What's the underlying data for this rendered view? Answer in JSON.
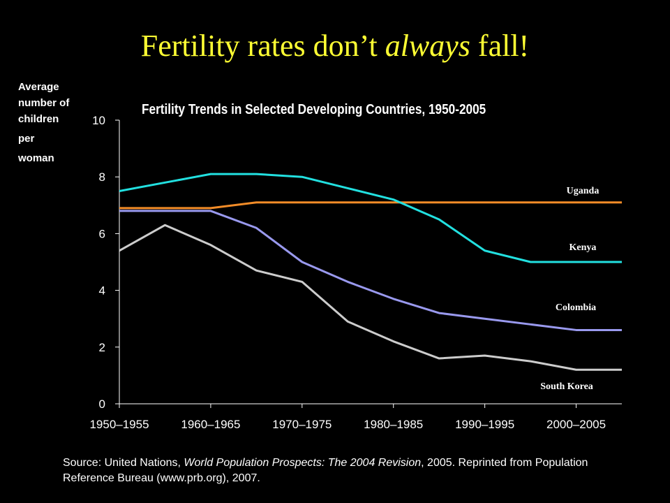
{
  "slide": {
    "title_pre": "Fertility rates don’t ",
    "title_em": "always",
    "title_post": " fall!",
    "source_pre": "Source: United Nations, ",
    "source_em": "World Population Prospects: The 2004 Revision",
    "source_post": ", 2005.  Reprinted from Population Reference Bureau (www.prb.org), 2007."
  },
  "chart_data": {
    "type": "line",
    "title": "Fertility Trends in Selected Developing Countries, 1950-2005",
    "ylabel_lines": [
      "Average",
      "number of",
      "children",
      "per",
      "woman"
    ],
    "ylim": [
      0,
      10
    ],
    "yticks": [
      0,
      2,
      4,
      6,
      8,
      10
    ],
    "x_tick_labels": [
      "1950–1955",
      "1960–1965",
      "1970–1975",
      "1980–1985",
      "1990–1995",
      "2000–2005"
    ],
    "x_periods": [
      1950,
      1955,
      1960,
      1965,
      1970,
      1975,
      1980,
      1985,
      1990,
      1995,
      2000
    ],
    "grid": false,
    "legend": "inline labels at right",
    "series": [
      {
        "name": "Uganda",
        "color": "#f28c28",
        "values": [
          6.9,
          6.9,
          6.9,
          7.1,
          7.1,
          7.1,
          7.1,
          7.1,
          7.1,
          7.1,
          7.1
        ]
      },
      {
        "name": "Kenya",
        "color": "#22e0e0",
        "values": [
          7.5,
          7.8,
          8.1,
          8.1,
          8.0,
          7.6,
          7.2,
          6.5,
          5.4,
          5.0,
          5.0
        ]
      },
      {
        "name": "Colombia",
        "color": "#9999ee",
        "values": [
          6.8,
          6.8,
          6.8,
          6.2,
          5.0,
          4.3,
          3.7,
          3.2,
          3.0,
          2.8,
          2.6
        ]
      },
      {
        "name": "South Korea",
        "color": "#cccccc",
        "values": [
          5.4,
          6.3,
          5.6,
          4.7,
          4.3,
          2.9,
          2.2,
          1.6,
          1.7,
          1.5,
          1.2
        ]
      }
    ]
  }
}
